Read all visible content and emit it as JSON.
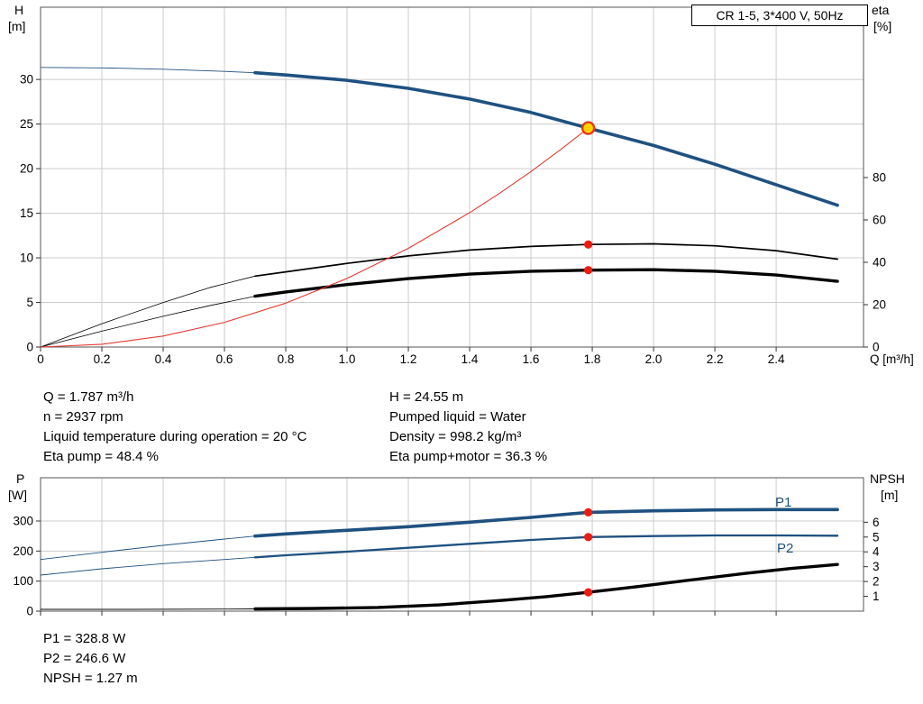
{
  "axes_labels": {
    "top_left_1": "H",
    "top_left_2": "[m]",
    "top_right_1": "eta",
    "top_right_2": "[%]",
    "bottom_left_1": "P",
    "bottom_left_2": "[W]",
    "bottom_right_1": "NPSH",
    "bottom_right_2": "[m]"
  },
  "curve_labels": {
    "p1": "P1",
    "p2": "P2"
  },
  "info_top": {
    "left": [
      "Q = 1.787 m³/h",
      "n = 2937 rpm",
      "Liquid temperature during operation = 20 °C",
      "Eta pump = 48.4 %"
    ],
    "right": [
      "H = 24.55 m",
      "Pumped liquid = Water",
      "Density = 998.2 kg/m³",
      "Eta pump+motor = 36.3 %"
    ]
  },
  "info_bottom": [
    "P1 = 328.8 W",
    "P2 = 246.6 W",
    "NPSH = 1.27 m"
  ],
  "colors": {
    "blue": "#1e5180",
    "red": "#e03c31",
    "dot": "#ee1c0f",
    "duty_fill": "#ffd400",
    "duty_ring": "#e8381c",
    "grid": "#cccccc",
    "border": "#555555",
    "tickmark": "#333333"
  },
  "chart_data": [
    {
      "name": "head-efficiency-chart",
      "type": "line",
      "title": "CR 1-5, 3*400 V, 50Hz",
      "x_axis": {
        "label": "Q [m³/h]",
        "min": 0,
        "max": 2.685,
        "ticks": [
          "0",
          "0.2",
          "0.4",
          "0.6",
          "0.8",
          "1.0",
          "1.2",
          "1.4",
          "1.6",
          "1.8",
          "2.0",
          "2.2",
          "2.4"
        ]
      },
      "y_left": {
        "label": "H [m]",
        "min": 0,
        "max": 38.1,
        "ticks": [
          "0",
          "5",
          "10",
          "15",
          "20",
          "25",
          "30"
        ]
      },
      "y_right": {
        "label": "eta [%]",
        "min": 0,
        "max": 160.4,
        "ticks": [
          "0",
          "20",
          "40",
          "60",
          "80"
        ]
      },
      "series": [
        {
          "name": "pump-curve-H",
          "axis": "left",
          "color": "#1e5180",
          "width": 3.6,
          "thin_width": 0.9,
          "thin_until": 0.7,
          "points": [
            [
              0,
              31.35
            ],
            [
              0.2,
              31.3
            ],
            [
              0.4,
              31.15
            ],
            [
              0.6,
              30.9
            ],
            [
              0.7,
              30.75
            ],
            [
              0.8,
              30.5
            ],
            [
              1.0,
              29.9
            ],
            [
              1.2,
              29.0
            ],
            [
              1.4,
              27.8
            ],
            [
              1.6,
              26.3
            ],
            [
              1.787,
              24.55
            ],
            [
              2.0,
              22.6
            ],
            [
              2.2,
              20.5
            ],
            [
              2.4,
              18.2
            ],
            [
              2.6,
              15.9
            ]
          ]
        },
        {
          "name": "eta-pump",
          "axis": "right",
          "color": "#000000",
          "width": 1.7,
          "thin_width": 0.8,
          "thin_until": 0.7,
          "points": [
            [
              0,
              0
            ],
            [
              0.2,
              11
            ],
            [
              0.4,
              21
            ],
            [
              0.55,
              28
            ],
            [
              0.7,
              33.5
            ],
            [
              0.8,
              35.5
            ],
            [
              1.0,
              39.5
            ],
            [
              1.2,
              43
            ],
            [
              1.4,
              45.8
            ],
            [
              1.6,
              47.5
            ],
            [
              1.787,
              48.4
            ],
            [
              2.0,
              48.7
            ],
            [
              2.2,
              47.8
            ],
            [
              2.4,
              45.5
            ],
            [
              2.6,
              41.5
            ]
          ]
        },
        {
          "name": "eta-pump-motor",
          "axis": "right",
          "color": "#000000",
          "width": 3.4,
          "thin_width": 0.8,
          "thin_until": 0.7,
          "points": [
            [
              0,
              0
            ],
            [
              0.2,
              7.5
            ],
            [
              0.4,
              14.5
            ],
            [
              0.55,
              19.5
            ],
            [
              0.7,
              24
            ],
            [
              0.8,
              26
            ],
            [
              1.0,
              29.5
            ],
            [
              1.2,
              32.3
            ],
            [
              1.4,
              34.4
            ],
            [
              1.6,
              35.8
            ],
            [
              1.787,
              36.3
            ],
            [
              2.0,
              36.5
            ],
            [
              2.2,
              35.8
            ],
            [
              2.4,
              34
            ],
            [
              2.6,
              31
            ]
          ]
        },
        {
          "name": "system-curve",
          "axis": "left",
          "color": "#e03c31",
          "width": 1.1,
          "points": [
            [
              0,
              0
            ],
            [
              0.2,
              0.31
            ],
            [
              0.4,
              1.23
            ],
            [
              0.6,
              2.77
            ],
            [
              0.8,
              4.92
            ],
            [
              1.0,
              7.69
            ],
            [
              1.2,
              11.07
            ],
            [
              1.4,
              15.07
            ],
            [
              1.5,
              17.3
            ],
            [
              1.6,
              19.68
            ],
            [
              1.7,
              22.22
            ],
            [
              1.787,
              24.55
            ]
          ]
        }
      ],
      "markers": [
        {
          "x": 1.787,
          "y": 24.55,
          "axis": "left",
          "style": "duty"
        },
        {
          "x": 1.787,
          "y": 48.4,
          "axis": "right",
          "style": "dot"
        },
        {
          "x": 1.787,
          "y": 36.3,
          "axis": "right",
          "style": "dot"
        }
      ]
    },
    {
      "name": "power-npsh-chart",
      "type": "line",
      "title": "",
      "x_axis": {
        "label": "",
        "min": 0,
        "max": 2.685,
        "ticks": [
          "0",
          "0.2",
          "0.4",
          "0.6",
          "0.8",
          "1.0",
          "1.2",
          "1.4",
          "1.6",
          "1.8",
          "2.0",
          "2.2",
          "2.4"
        ]
      },
      "y_left": {
        "label": "P [W]",
        "min": 0,
        "max": 444,
        "ticks": [
          "0",
          "100",
          "200",
          "300"
        ]
      },
      "y_right": {
        "label": "NPSH [m]",
        "min": 0,
        "max": 9.0,
        "ticks": [
          "1",
          "2",
          "3",
          "4",
          "5",
          "6"
        ]
      },
      "series": [
        {
          "name": "P1",
          "axis": "left",
          "color": "#1e5180",
          "width": 3.6,
          "thin_width": 0.9,
          "thin_until": 0.7,
          "points": [
            [
              0,
              172
            ],
            [
              0.2,
              196
            ],
            [
              0.4,
              219
            ],
            [
              0.6,
              240
            ],
            [
              0.7,
              250
            ],
            [
              0.8,
              257
            ],
            [
              1.0,
              269
            ],
            [
              1.2,
              281
            ],
            [
              1.4,
              296
            ],
            [
              1.6,
              312
            ],
            [
              1.787,
              328.8
            ],
            [
              2.0,
              334
            ],
            [
              2.2,
              337
            ],
            [
              2.4,
              338
            ],
            [
              2.6,
              338
            ]
          ]
        },
        {
          "name": "P2",
          "axis": "left",
          "color": "#1e5180",
          "width": 2.3,
          "thin_width": 0.9,
          "thin_until": 0.7,
          "points": [
            [
              0,
              120
            ],
            [
              0.2,
              141
            ],
            [
              0.4,
              158
            ],
            [
              0.6,
              172
            ],
            [
              0.7,
              179
            ],
            [
              0.8,
              186
            ],
            [
              1.0,
              198
            ],
            [
              1.2,
              211
            ],
            [
              1.4,
              224
            ],
            [
              1.6,
              237
            ],
            [
              1.787,
              246.6
            ],
            [
              2.0,
              250
            ],
            [
              2.2,
              252
            ],
            [
              2.4,
              252
            ],
            [
              2.6,
              251
            ]
          ]
        },
        {
          "name": "NPSH",
          "axis": "right",
          "color": "#000000",
          "width": 3.4,
          "thin_width": 0.9,
          "thin_until": 0.7,
          "points": [
            [
              0,
              0.12
            ],
            [
              0.3,
              0.12
            ],
            [
              0.6,
              0.14
            ],
            [
              0.7,
              0.15
            ],
            [
              0.9,
              0.18
            ],
            [
              1.1,
              0.25
            ],
            [
              1.3,
              0.42
            ],
            [
              1.5,
              0.72
            ],
            [
              1.65,
              0.98
            ],
            [
              1.787,
              1.27
            ],
            [
              1.95,
              1.66
            ],
            [
              2.1,
              2.05
            ],
            [
              2.3,
              2.55
            ],
            [
              2.45,
              2.88
            ],
            [
              2.6,
              3.15
            ]
          ]
        }
      ],
      "markers": [
        {
          "x": 1.787,
          "y": 328.8,
          "axis": "left",
          "style": "dot"
        },
        {
          "x": 1.787,
          "y": 246.6,
          "axis": "left",
          "style": "dot"
        },
        {
          "x": 1.787,
          "y": 1.27,
          "axis": "right",
          "style": "dot"
        }
      ]
    }
  ]
}
